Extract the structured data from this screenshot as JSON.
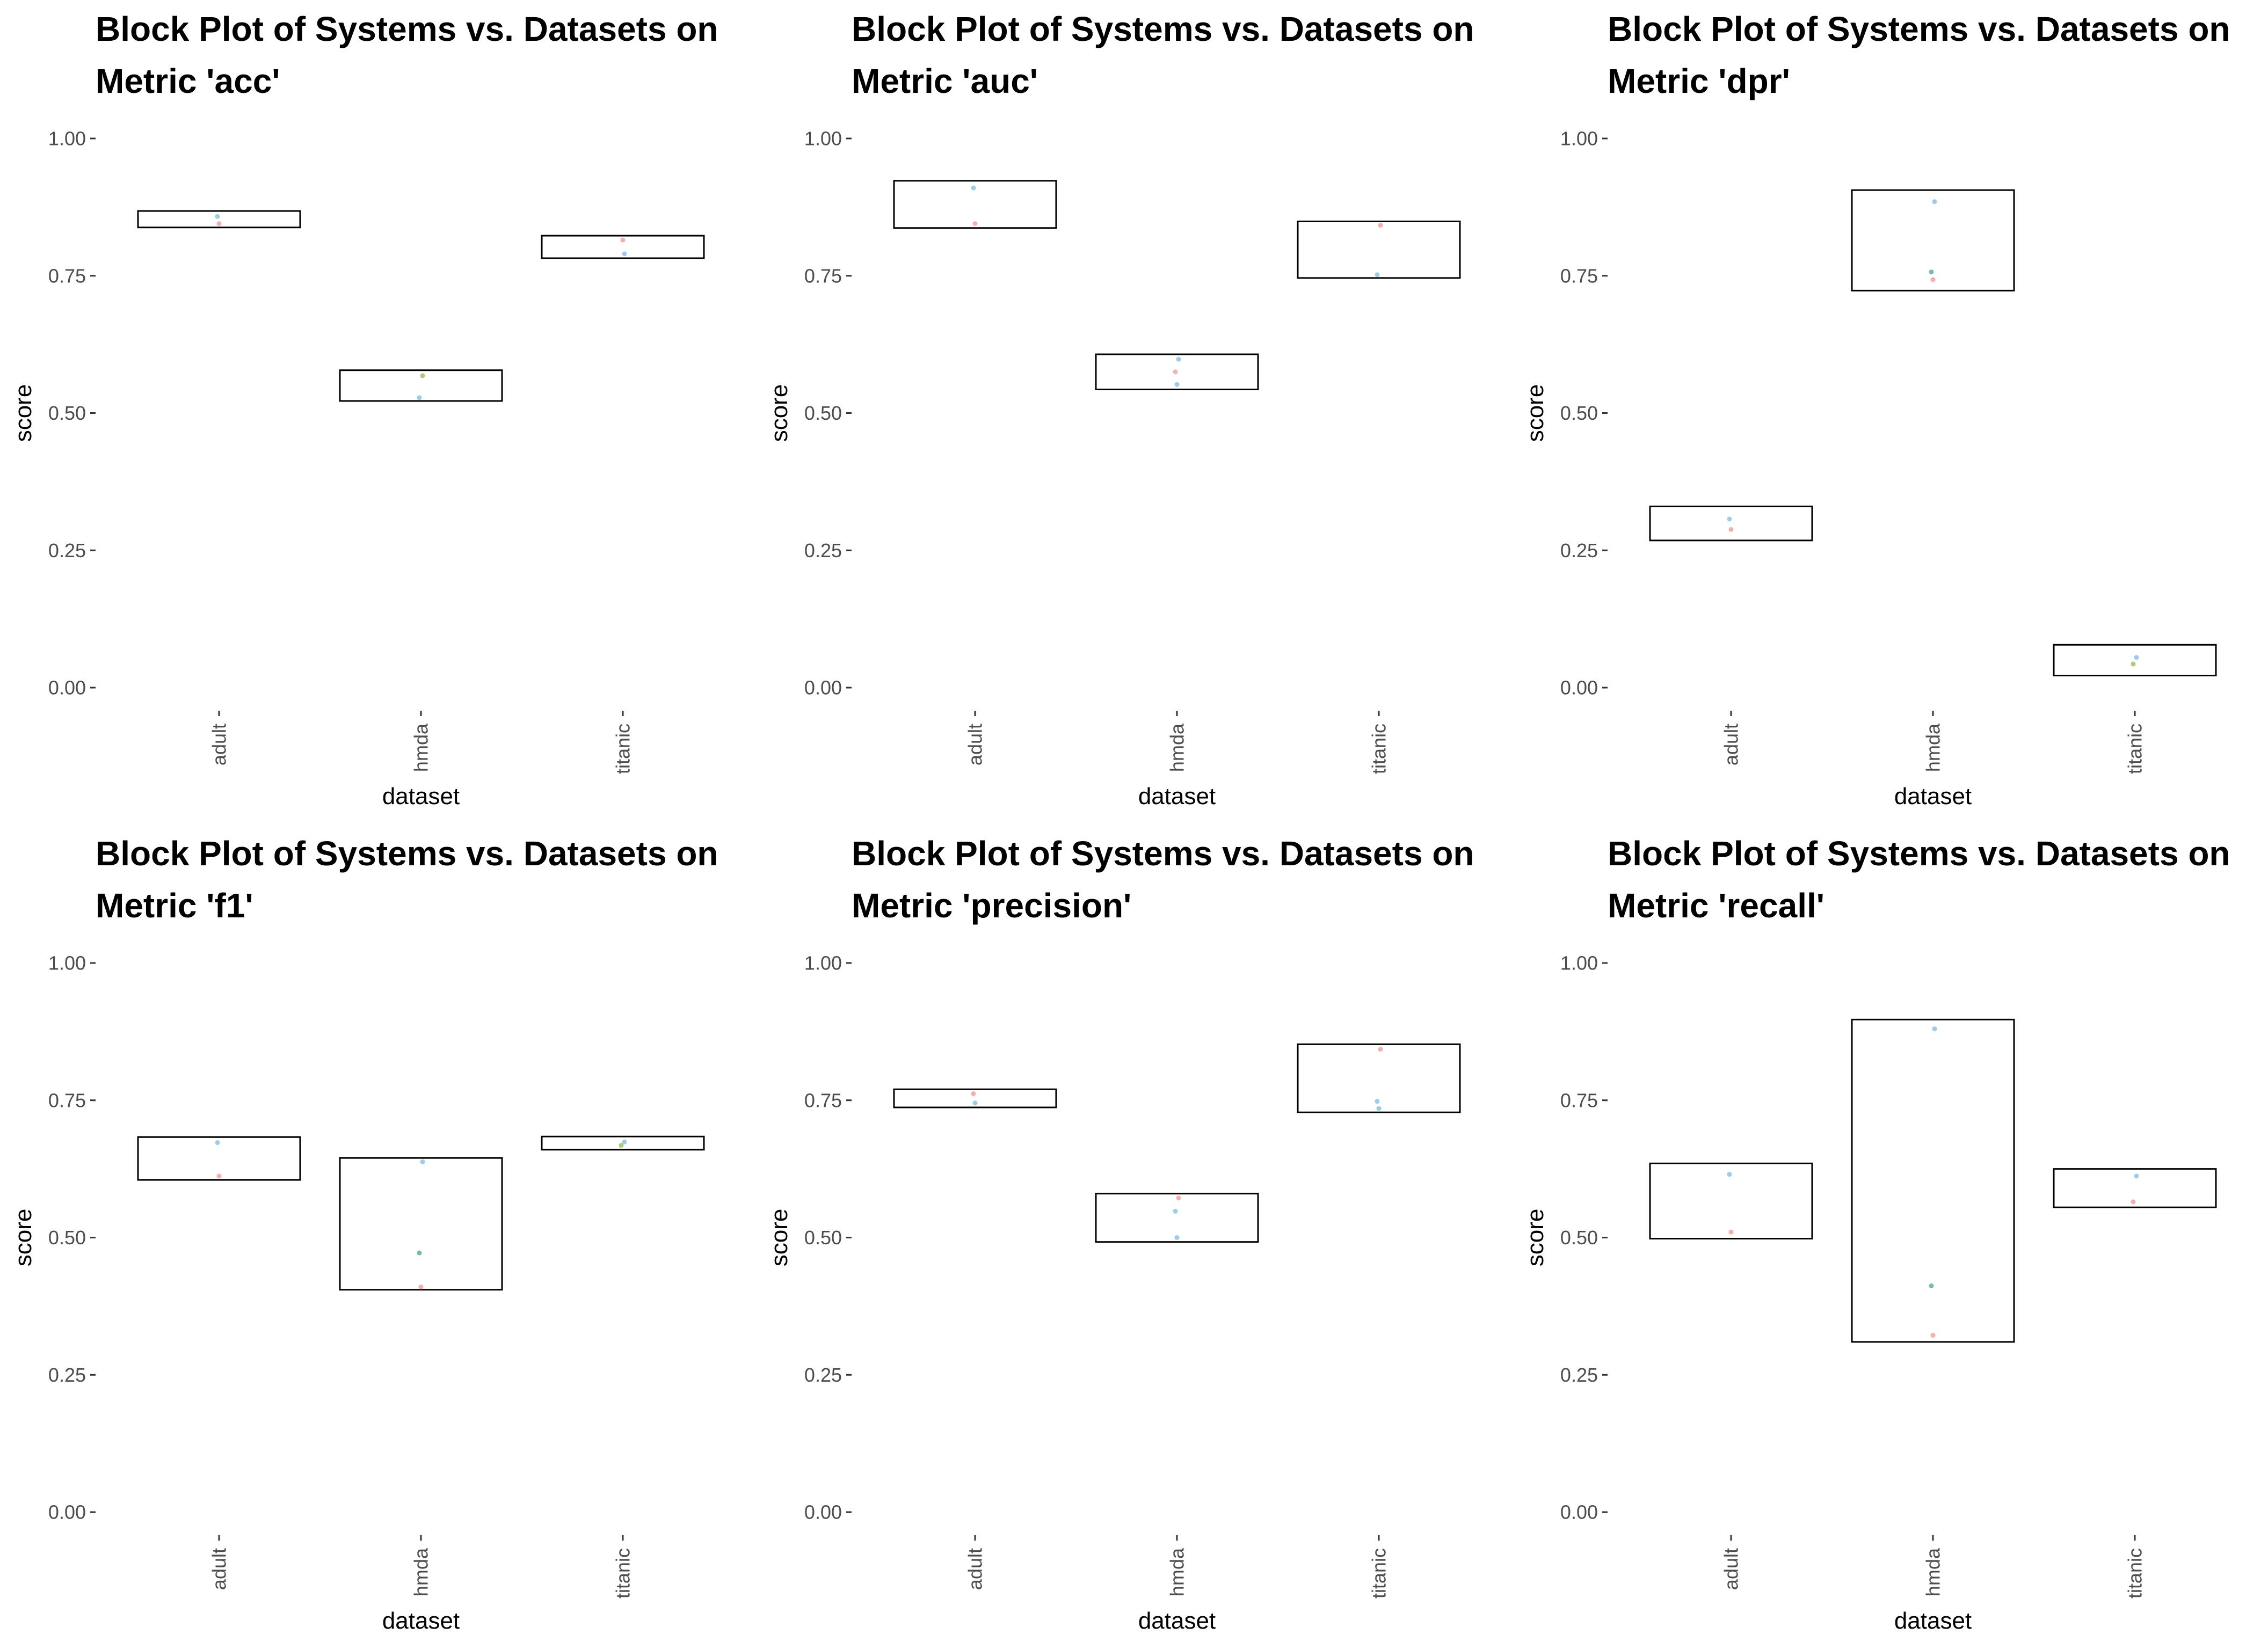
{
  "chart_data": [
    {
      "type": "box",
      "title": "Block Plot of Systems vs. Datasets on Metric 'acc'",
      "xlabel": "dataset",
      "ylabel": "score",
      "ylim": [
        0,
        1
      ],
      "yticks": [
        "0.00",
        "0.25",
        "0.50",
        "0.75",
        "1.00"
      ],
      "categories": [
        "adult",
        "hmda",
        "titanic"
      ],
      "blocks": [
        {
          "category": "adult",
          "low": 0.838,
          "high": 0.868
        },
        {
          "category": "hmda",
          "low": 0.522,
          "high": 0.578
        },
        {
          "category": "titanic",
          "low": 0.782,
          "high": 0.823
        }
      ],
      "points": [
        {
          "category": "adult",
          "y": 0.858,
          "color": "#89c4e8"
        },
        {
          "category": "adult",
          "y": 0.845,
          "color": "#f4a0a0"
        },
        {
          "category": "hmda",
          "y": 0.568,
          "color": "#a0c060"
        },
        {
          "category": "hmda",
          "y": 0.528,
          "color": "#89c4e8"
        },
        {
          "category": "titanic",
          "y": 0.815,
          "color": "#f4a0a0"
        },
        {
          "category": "titanic",
          "y": 0.79,
          "color": "#89c4e8"
        }
      ]
    },
    {
      "type": "box",
      "title": "Block Plot of Systems vs. Datasets on Metric 'auc'",
      "xlabel": "dataset",
      "ylabel": "score",
      "ylim": [
        0,
        1
      ],
      "yticks": [
        "0.00",
        "0.25",
        "0.50",
        "0.75",
        "1.00"
      ],
      "categories": [
        "adult",
        "hmda",
        "titanic"
      ],
      "blocks": [
        {
          "category": "adult",
          "low": 0.837,
          "high": 0.923
        },
        {
          "category": "hmda",
          "low": 0.543,
          "high": 0.607
        },
        {
          "category": "titanic",
          "low": 0.746,
          "high": 0.849
        }
      ],
      "points": [
        {
          "category": "adult",
          "y": 0.91,
          "color": "#89c4e8"
        },
        {
          "category": "adult",
          "y": 0.845,
          "color": "#f4a0a0"
        },
        {
          "category": "hmda",
          "y": 0.598,
          "color": "#89c4e8"
        },
        {
          "category": "hmda",
          "y": 0.575,
          "color": "#f4a0a0"
        },
        {
          "category": "hmda",
          "y": 0.552,
          "color": "#89c4e8"
        },
        {
          "category": "titanic",
          "y": 0.842,
          "color": "#f4a0a0"
        },
        {
          "category": "titanic",
          "y": 0.752,
          "color": "#89c4e8"
        }
      ]
    },
    {
      "type": "box",
      "title": "Block Plot of Systems vs. Datasets on Metric 'dpr'",
      "xlabel": "dataset",
      "ylabel": "score",
      "ylim": [
        0,
        1
      ],
      "yticks": [
        "0.00",
        "0.25",
        "0.50",
        "0.75",
        "1.00"
      ],
      "categories": [
        "adult",
        "hmda",
        "titanic"
      ],
      "blocks": [
        {
          "category": "adult",
          "low": 0.268,
          "high": 0.33
        },
        {
          "category": "hmda",
          "low": 0.723,
          "high": 0.906
        },
        {
          "category": "titanic",
          "low": 0.022,
          "high": 0.078
        }
      ],
      "points": [
        {
          "category": "adult",
          "y": 0.307,
          "color": "#89c4e8"
        },
        {
          "category": "adult",
          "y": 0.288,
          "color": "#f4a0a0"
        },
        {
          "category": "hmda",
          "y": 0.885,
          "color": "#89c4e8"
        },
        {
          "category": "hmda",
          "y": 0.757,
          "color": "#60b0a0"
        },
        {
          "category": "hmda",
          "y": 0.743,
          "color": "#f4a0a0"
        },
        {
          "category": "titanic",
          "y": 0.055,
          "color": "#89c4e8"
        },
        {
          "category": "titanic",
          "y": 0.043,
          "color": "#a0c060"
        }
      ]
    },
    {
      "type": "box",
      "title": "Block Plot of Systems vs. Datasets on Metric 'f1'",
      "xlabel": "dataset",
      "ylabel": "score",
      "ylim": [
        0,
        1
      ],
      "yticks": [
        "0.00",
        "0.25",
        "0.50",
        "0.75",
        "1.00"
      ],
      "categories": [
        "adult",
        "hmda",
        "titanic"
      ],
      "blocks": [
        {
          "category": "adult",
          "low": 0.605,
          "high": 0.683
        },
        {
          "category": "hmda",
          "low": 0.405,
          "high": 0.645
        },
        {
          "category": "titanic",
          "low": 0.66,
          "high": 0.684
        }
      ],
      "points": [
        {
          "category": "adult",
          "y": 0.673,
          "color": "#89c4e8"
        },
        {
          "category": "adult",
          "y": 0.612,
          "color": "#f4a0a0"
        },
        {
          "category": "hmda",
          "y": 0.638,
          "color": "#89c4e8"
        },
        {
          "category": "hmda",
          "y": 0.472,
          "color": "#60b0a0"
        },
        {
          "category": "hmda",
          "y": 0.41,
          "color": "#f4a0a0"
        },
        {
          "category": "titanic",
          "y": 0.674,
          "color": "#89c4e8"
        },
        {
          "category": "titanic",
          "y": 0.668,
          "color": "#a0c060"
        }
      ]
    },
    {
      "type": "box",
      "title": "Block Plot of Systems vs. Datasets on Metric 'precision'",
      "xlabel": "dataset",
      "ylabel": "score",
      "ylim": [
        0,
        1
      ],
      "yticks": [
        "0.00",
        "0.25",
        "0.50",
        "0.75",
        "1.00"
      ],
      "categories": [
        "adult",
        "hmda",
        "titanic"
      ],
      "blocks": [
        {
          "category": "adult",
          "low": 0.737,
          "high": 0.77
        },
        {
          "category": "hmda",
          "low": 0.492,
          "high": 0.58
        },
        {
          "category": "titanic",
          "low": 0.728,
          "high": 0.852
        }
      ],
      "points": [
        {
          "category": "adult",
          "y": 0.762,
          "color": "#f4a0a0"
        },
        {
          "category": "adult",
          "y": 0.745,
          "color": "#89c4e8"
        },
        {
          "category": "hmda",
          "y": 0.572,
          "color": "#f4a0a0"
        },
        {
          "category": "hmda",
          "y": 0.548,
          "color": "#89c4e8"
        },
        {
          "category": "hmda",
          "y": 0.5,
          "color": "#89c4e8"
        },
        {
          "category": "titanic",
          "y": 0.843,
          "color": "#f4a0a0"
        },
        {
          "category": "titanic",
          "y": 0.748,
          "color": "#89c4e8"
        },
        {
          "category": "titanic",
          "y": 0.735,
          "color": "#89c4e8"
        }
      ]
    },
    {
      "type": "box",
      "title": "Block Plot of Systems vs. Datasets on Metric 'recall'",
      "xlabel": "dataset",
      "ylabel": "score",
      "ylim": [
        0,
        1
      ],
      "yticks": [
        "0.00",
        "0.25",
        "0.50",
        "0.75",
        "1.00"
      ],
      "categories": [
        "adult",
        "hmda",
        "titanic"
      ],
      "blocks": [
        {
          "category": "adult",
          "low": 0.498,
          "high": 0.635
        },
        {
          "category": "hmda",
          "low": 0.31,
          "high": 0.897
        },
        {
          "category": "titanic",
          "low": 0.555,
          "high": 0.625
        }
      ],
      "points": [
        {
          "category": "adult",
          "y": 0.615,
          "color": "#89c4e8"
        },
        {
          "category": "adult",
          "y": 0.51,
          "color": "#f4a0a0"
        },
        {
          "category": "hmda",
          "y": 0.88,
          "color": "#89c4e8"
        },
        {
          "category": "hmda",
          "y": 0.412,
          "color": "#60b0a0"
        },
        {
          "category": "hmda",
          "y": 0.322,
          "color": "#f4a0a0"
        },
        {
          "category": "titanic",
          "y": 0.612,
          "color": "#89c4e8"
        },
        {
          "category": "titanic",
          "y": 0.565,
          "color": "#f4a0a0"
        }
      ]
    }
  ]
}
